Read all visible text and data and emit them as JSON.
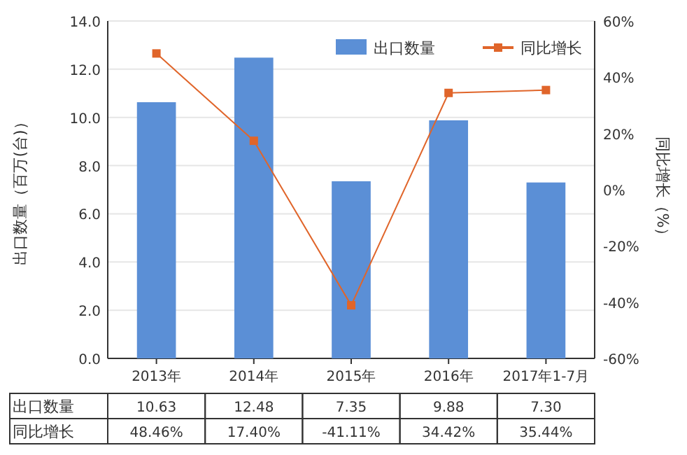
{
  "chart_data": {
    "type": "bar",
    "ylabel": "出口数量（百万(台)）",
    "y2label": "同比增长（%）",
    "categories": [
      "2013年",
      "2014年",
      "2015年",
      "2016年",
      "2017年1-7月"
    ],
    "series": [
      {
        "name": "出口数量",
        "color": "#5b8fd6",
        "values": [
          10.63,
          12.48,
          7.35,
          9.88,
          7.3
        ],
        "value_labels": [
          "10.63",
          "12.48",
          "7.35",
          "9.88",
          "7.30"
        ]
      },
      {
        "name": "同比增长",
        "type": "line",
        "axis": "y2",
        "color": "#e0652a",
        "marker": "square",
        "values": [
          48.46,
          17.4,
          -41.11,
          34.42,
          35.44
        ],
        "value_labels": [
          "48.46%",
          "17.40%",
          "-41.11%",
          "34.42%",
          "35.44%"
        ]
      }
    ],
    "ylim": [
      0,
      14
    ],
    "yticks": [
      {
        "value": 0,
        "label": "0.0"
      },
      {
        "value": 2,
        "label": "2.0"
      },
      {
        "value": 4,
        "label": "4.0"
      },
      {
        "value": 6,
        "label": "6.0"
      },
      {
        "value": 8,
        "label": "8.0"
      },
      {
        "value": 10,
        "label": "10.0"
      },
      {
        "value": 12,
        "label": "12.0"
      },
      {
        "value": 14,
        "label": "14.0"
      }
    ],
    "y2lim": [
      -60,
      60
    ],
    "y2ticks": [
      {
        "value": -60,
        "label": "-60%"
      },
      {
        "value": -40,
        "label": "-40%"
      },
      {
        "value": -20,
        "label": "-20%"
      },
      {
        "value": 0,
        "label": "0%"
      },
      {
        "value": 20,
        "label": "20%"
      },
      {
        "value": 40,
        "label": "40%"
      },
      {
        "value": 60,
        "label": "60%"
      }
    ],
    "grid": "y",
    "legend": "top right"
  }
}
